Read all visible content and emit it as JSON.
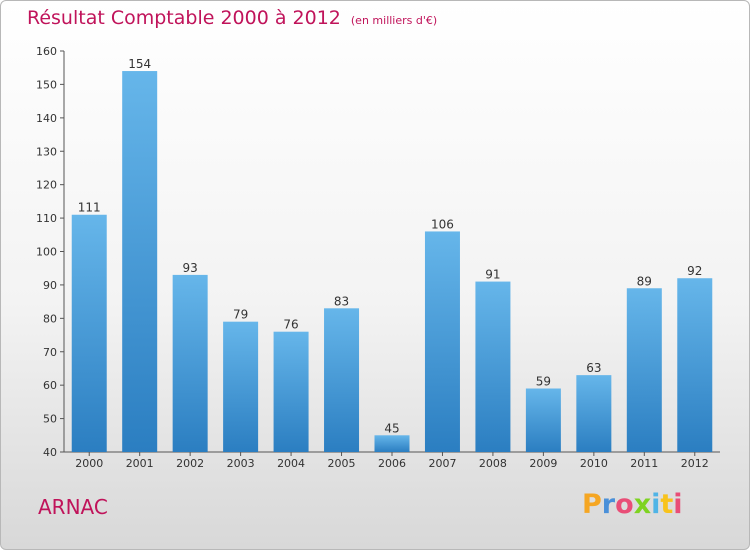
{
  "title": "Résultat Comptable 2000 à 2012",
  "unit": "(en milliers d'€)",
  "commune": "ARNAC",
  "logo": {
    "text": "Proxiti",
    "letters": [
      "P",
      "r",
      "o",
      "x",
      "i",
      "t",
      "i"
    ],
    "colors": [
      "#f5a623",
      "#4a90d9",
      "#e94e77",
      "#7ed321",
      "#50b4e6",
      "#f8c31c",
      "#e94e77"
    ]
  },
  "colors": {
    "bar": "#4a9edb",
    "bar_light": "#66b6ea",
    "bar_dark": "#2b7ec1",
    "title": "#c0135a"
  },
  "chart_data": {
    "type": "bar",
    "title": "Résultat Comptable 2000 à 2012",
    "ylabel": "",
    "xlabel": "",
    "ylim": [
      40,
      160
    ],
    "yticks": [
      40,
      50,
      60,
      70,
      80,
      90,
      100,
      110,
      120,
      130,
      140,
      150,
      160
    ],
    "categories": [
      "2000",
      "2001",
      "2002",
      "2003",
      "2004",
      "2005",
      "2006",
      "2007",
      "2008",
      "2009",
      "2010",
      "2011",
      "2012"
    ],
    "values": [
      111,
      154,
      93,
      79,
      76,
      83,
      45,
      106,
      91,
      59,
      63,
      89,
      92
    ],
    "grid": false
  }
}
